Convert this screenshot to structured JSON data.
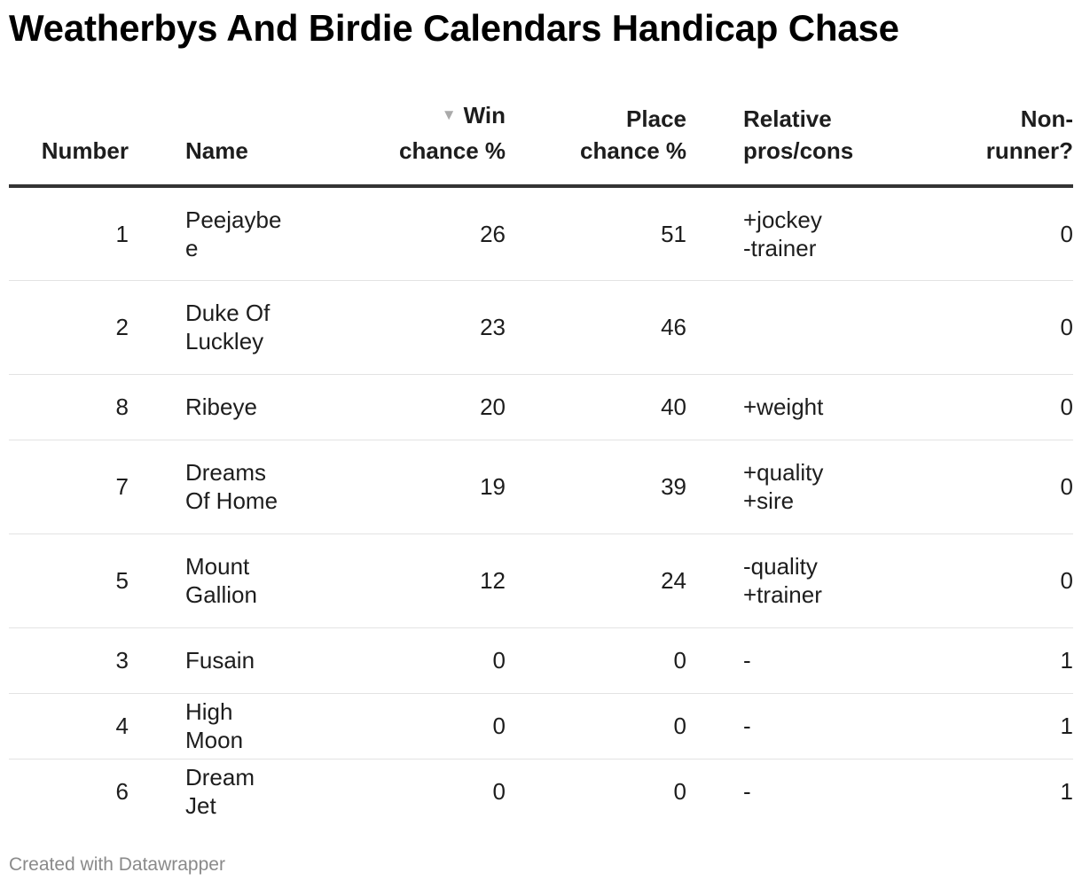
{
  "title": "Weatherbys And Birdie Calendars Handicap Chase",
  "sort_icon": "sort-descending-triangle-icon",
  "columns": {
    "number": "Number",
    "name": "Name",
    "win": "Win chance %",
    "place": "Place chance %",
    "pros_cons": "Relative pros/cons",
    "non_runner": "Non-runner?"
  },
  "chart_data": {
    "type": "table",
    "title": "Weatherbys And Birdie Calendars Handicap Chase",
    "sorted_by": "Win chance %",
    "sort_order": "descending",
    "columns": [
      "Number",
      "Name",
      "Win chance %",
      "Place chance %",
      "Relative pros/cons",
      "Non-runner?"
    ],
    "rows": [
      {
        "number": "1",
        "name": "Peejaybee",
        "win": "26",
        "place": "51",
        "pros_cons": "+jockey\n-trainer",
        "non_runner": "0"
      },
      {
        "number": "2",
        "name": "Duke Of Luckley",
        "win": "23",
        "place": "46",
        "pros_cons": "",
        "non_runner": "0"
      },
      {
        "number": "8",
        "name": "Ribeye",
        "win": "20",
        "place": "40",
        "pros_cons": "+weight",
        "non_runner": "0"
      },
      {
        "number": "7",
        "name": "Dreams Of Home",
        "win": "19",
        "place": "39",
        "pros_cons": "+quality\n+sire",
        "non_runner": "0"
      },
      {
        "number": "5",
        "name": "Mount Gallion",
        "win": "12",
        "place": "24",
        "pros_cons": "-quality\n+trainer",
        "non_runner": "0"
      },
      {
        "number": "3",
        "name": "Fusain",
        "win": "0",
        "place": "0",
        "pros_cons": "-",
        "non_runner": "1"
      },
      {
        "number": "4",
        "name": "High Moon",
        "win": "0",
        "place": "0",
        "pros_cons": "-",
        "non_runner": "1"
      },
      {
        "number": "6",
        "name": "Dream Jet",
        "win": "0",
        "place": "0",
        "pros_cons": "-",
        "non_runner": "1"
      }
    ]
  },
  "footer": "Created with Datawrapper"
}
